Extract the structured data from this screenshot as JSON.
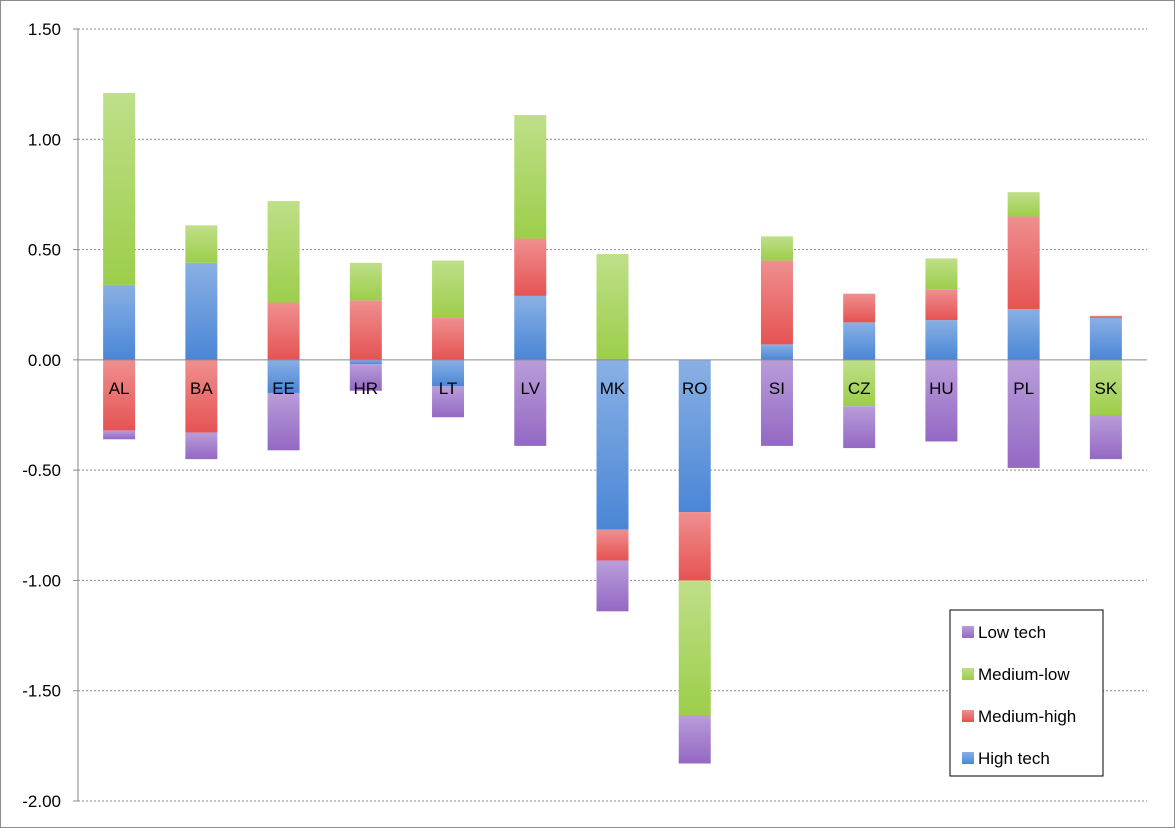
{
  "chart_data": {
    "type": "bar",
    "stacked": true,
    "diverging": true,
    "title": "",
    "xlabel": "",
    "ylabel": "",
    "ylim": [
      -2.0,
      1.5
    ],
    "yticks": [
      "1.50",
      "1.00",
      "0.50",
      "0.00",
      "-0.50",
      "-1.00",
      "-1.50",
      "-2.00"
    ],
    "ytick_values": [
      1.5,
      1.0,
      0.5,
      0.0,
      -0.5,
      -1.0,
      -1.5,
      -2.0
    ],
    "grid": "horizontal dotted",
    "legend_position": "bottom-right",
    "categories": [
      "AL",
      "BA",
      "EE",
      "HR",
      "LT",
      "LV",
      "MK",
      "RO",
      "SI",
      "CZ",
      "HU",
      "PL",
      "SK"
    ],
    "series": [
      {
        "name": "High tech",
        "color": "#4a86d6",
        "values": [
          0.34,
          0.44,
          -0.15,
          -0.02,
          -0.12,
          0.29,
          -0.77,
          -0.69,
          0.07,
          0.17,
          0.18,
          0.23,
          0.19
        ]
      },
      {
        "name": "Medium-high",
        "color": "#e65353",
        "values": [
          -0.32,
          -0.33,
          0.26,
          0.27,
          0.19,
          0.26,
          -0.14,
          -0.31,
          0.38,
          0.13,
          0.14,
          0.42,
          0.01
        ]
      },
      {
        "name": "Medium-low",
        "color": "#9cce4a",
        "values": [
          0.87,
          0.17,
          0.46,
          0.17,
          0.26,
          0.56,
          0.48,
          -0.61,
          0.11,
          -0.21,
          0.14,
          0.11,
          -0.25
        ]
      },
      {
        "name": "Low tech",
        "color": "#9468c4",
        "values": [
          -0.04,
          -0.12,
          -0.26,
          -0.12,
          -0.14,
          -0.39,
          -0.23,
          -0.22,
          -0.39,
          -0.19,
          -0.37,
          -0.49,
          -0.2
        ]
      }
    ],
    "legend_order": [
      "Low tech",
      "Medium-low",
      "Medium-high",
      "High tech"
    ]
  }
}
